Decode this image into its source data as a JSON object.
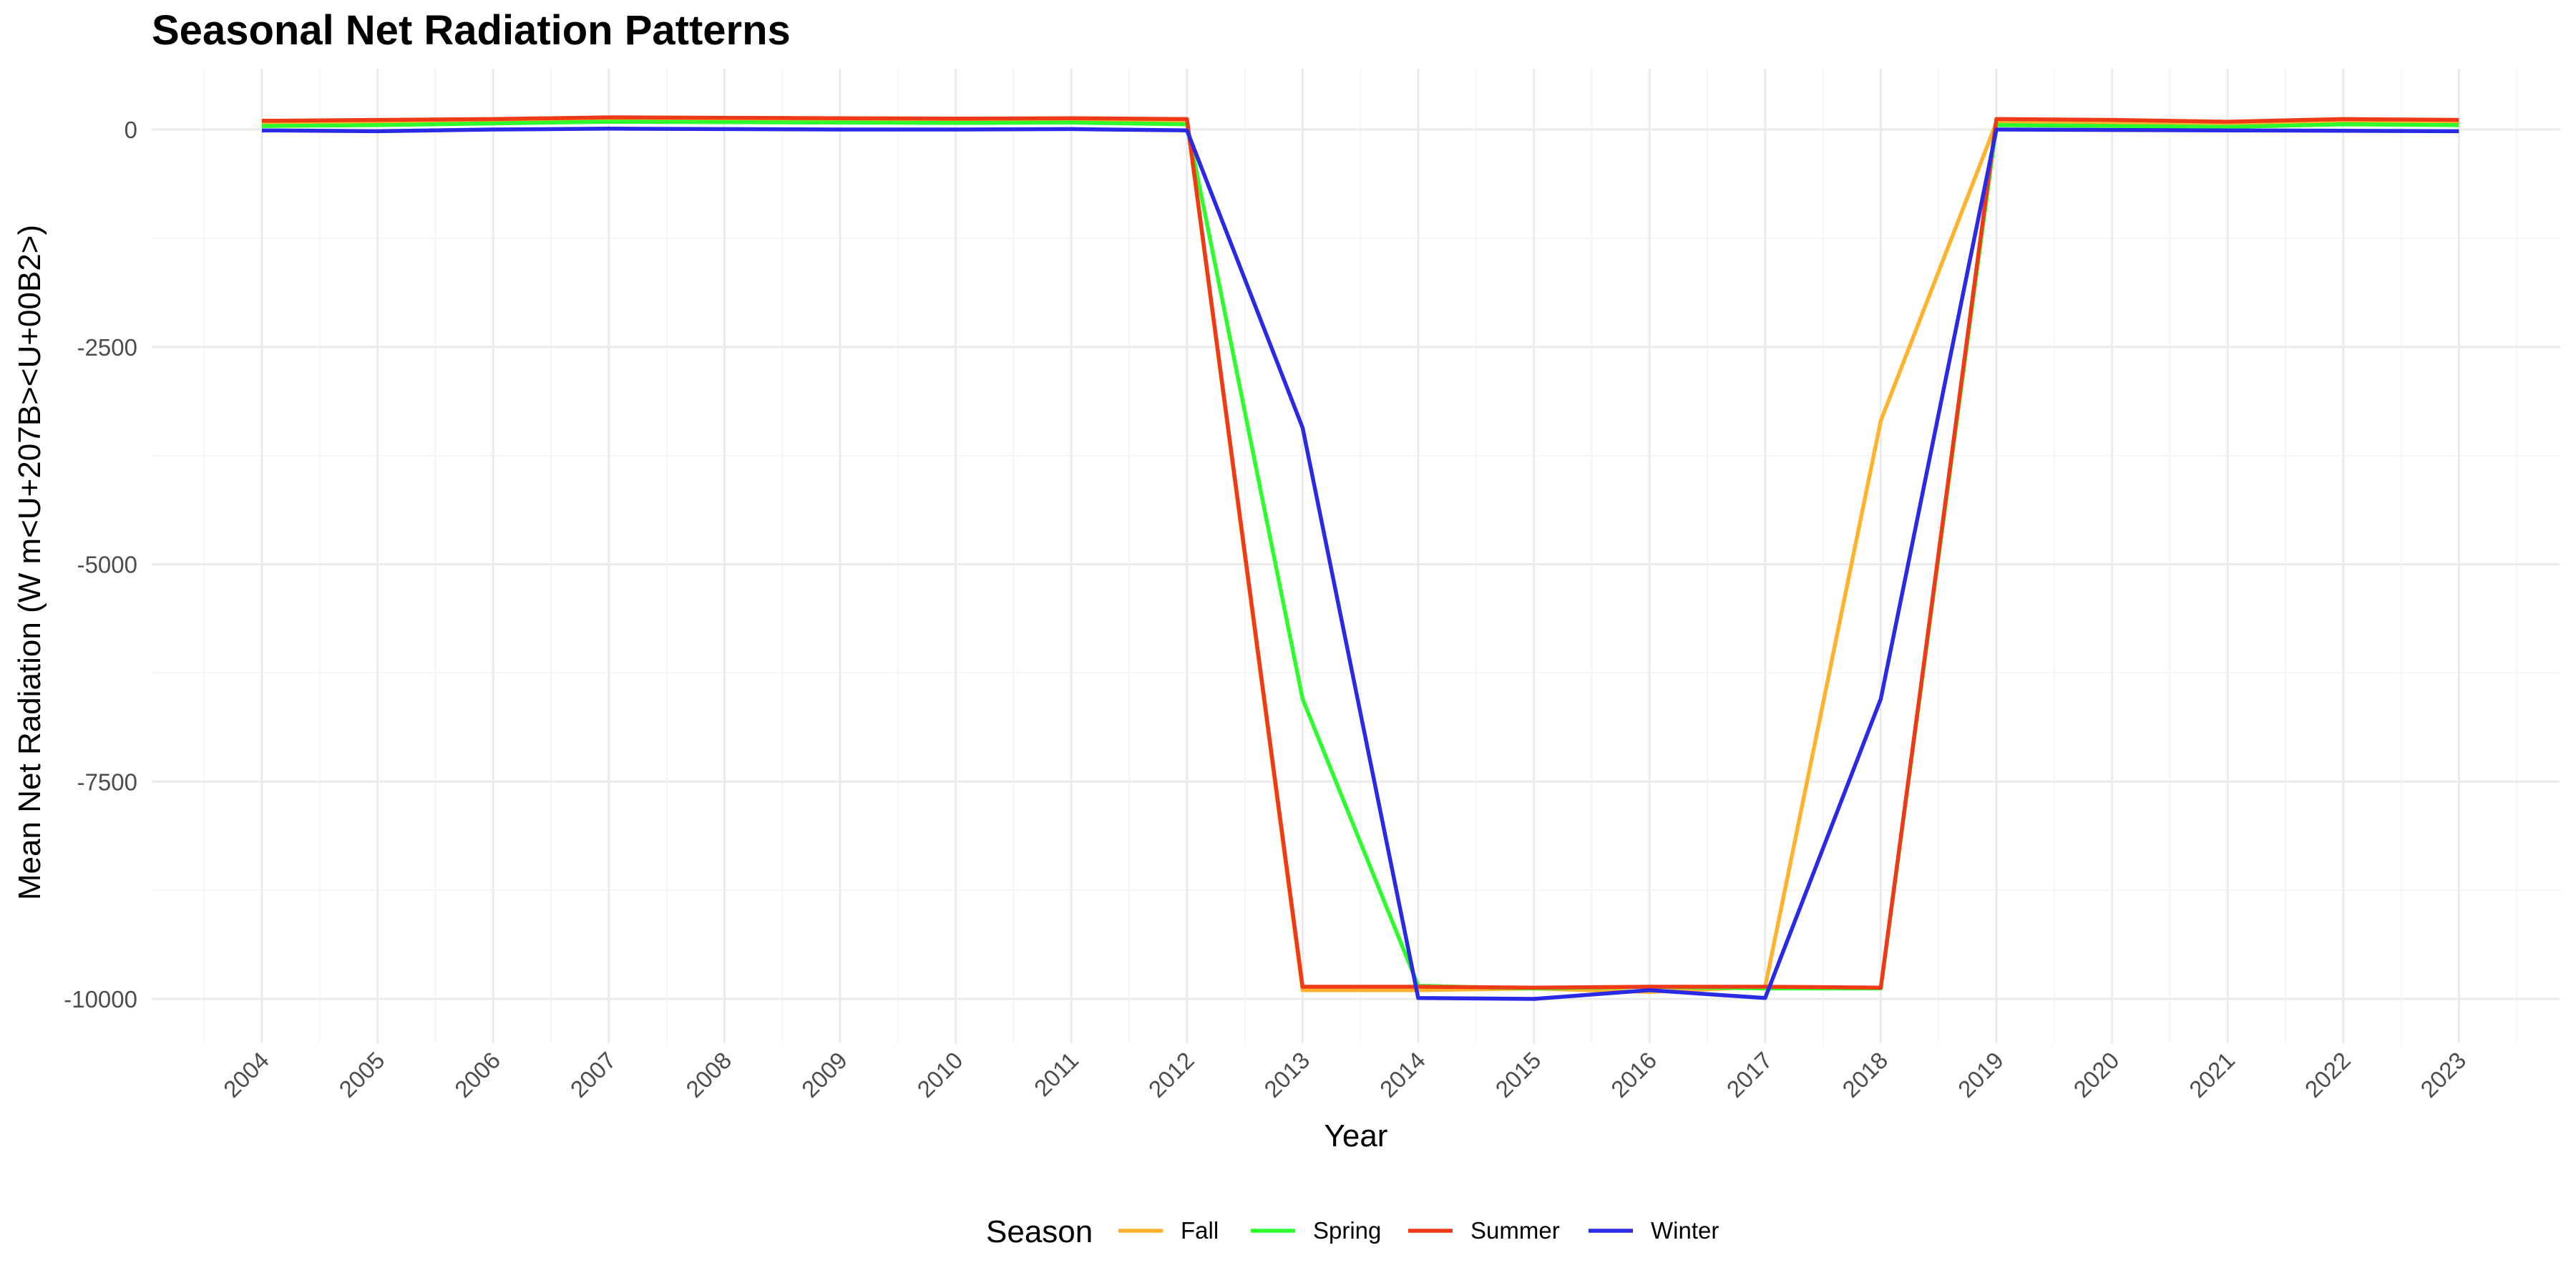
{
  "chart_data": {
    "type": "line",
    "title": "Seasonal Net Radiation Patterns",
    "xlabel": "Year",
    "ylabel": "Mean Net Radiation (W m<U+207B><U+00B2>)",
    "x": [
      2004,
      2005,
      2006,
      2007,
      2008,
      2009,
      2010,
      2011,
      2012,
      2013,
      2014,
      2015,
      2016,
      2017,
      2018,
      2019,
      2020,
      2021,
      2022,
      2023
    ],
    "x_tick_labels": [
      "2004",
      "2005",
      "2006",
      "2007",
      "2008",
      "2009",
      "2010",
      "2011",
      "2012",
      "2013",
      "2014",
      "2015",
      "2016",
      "2017",
      "2018",
      "2019",
      "2020",
      "2021",
      "2022",
      "2023"
    ],
    "y_ticks": [
      0,
      -2500,
      -5000,
      -7500,
      -10000
    ],
    "y_tick_labels": [
      "0",
      "-2500",
      "-5000",
      "-7500",
      "-10000"
    ],
    "ylim": [
      -10500,
      700
    ],
    "grid": true,
    "legend_title": "Season",
    "legend_position": "bottom",
    "series": [
      {
        "name": "Fall",
        "color": "#ffb22e",
        "values": [
          70,
          80,
          100,
          120,
          115,
          110,
          105,
          110,
          100,
          -9900,
          -9900,
          -9880,
          -9920,
          -9860,
          -3350,
          80,
          70,
          60,
          80,
          70
        ]
      },
      {
        "name": "Spring",
        "color": "#2dfc2d",
        "values": [
          40,
          50,
          70,
          90,
          85,
          80,
          75,
          80,
          60,
          -6550,
          -9850,
          -9880,
          -9860,
          -9880,
          -9880,
          50,
          40,
          30,
          60,
          50
        ]
      },
      {
        "name": "Summer",
        "color": "#f03a17",
        "values": [
          100,
          110,
          120,
          140,
          135,
          130,
          125,
          130,
          120,
          -9860,
          -9860,
          -9870,
          -9860,
          -9860,
          -9870,
          120,
          110,
          90,
          120,
          110
        ]
      },
      {
        "name": "Winter",
        "color": "#2a2ae6",
        "values": [
          -10,
          -20,
          0,
          10,
          5,
          0,
          0,
          5,
          -10,
          -3430,
          -9990,
          -10000,
          -9900,
          -9990,
          -6550,
          0,
          -5,
          -10,
          -15,
          -20
        ]
      }
    ]
  }
}
